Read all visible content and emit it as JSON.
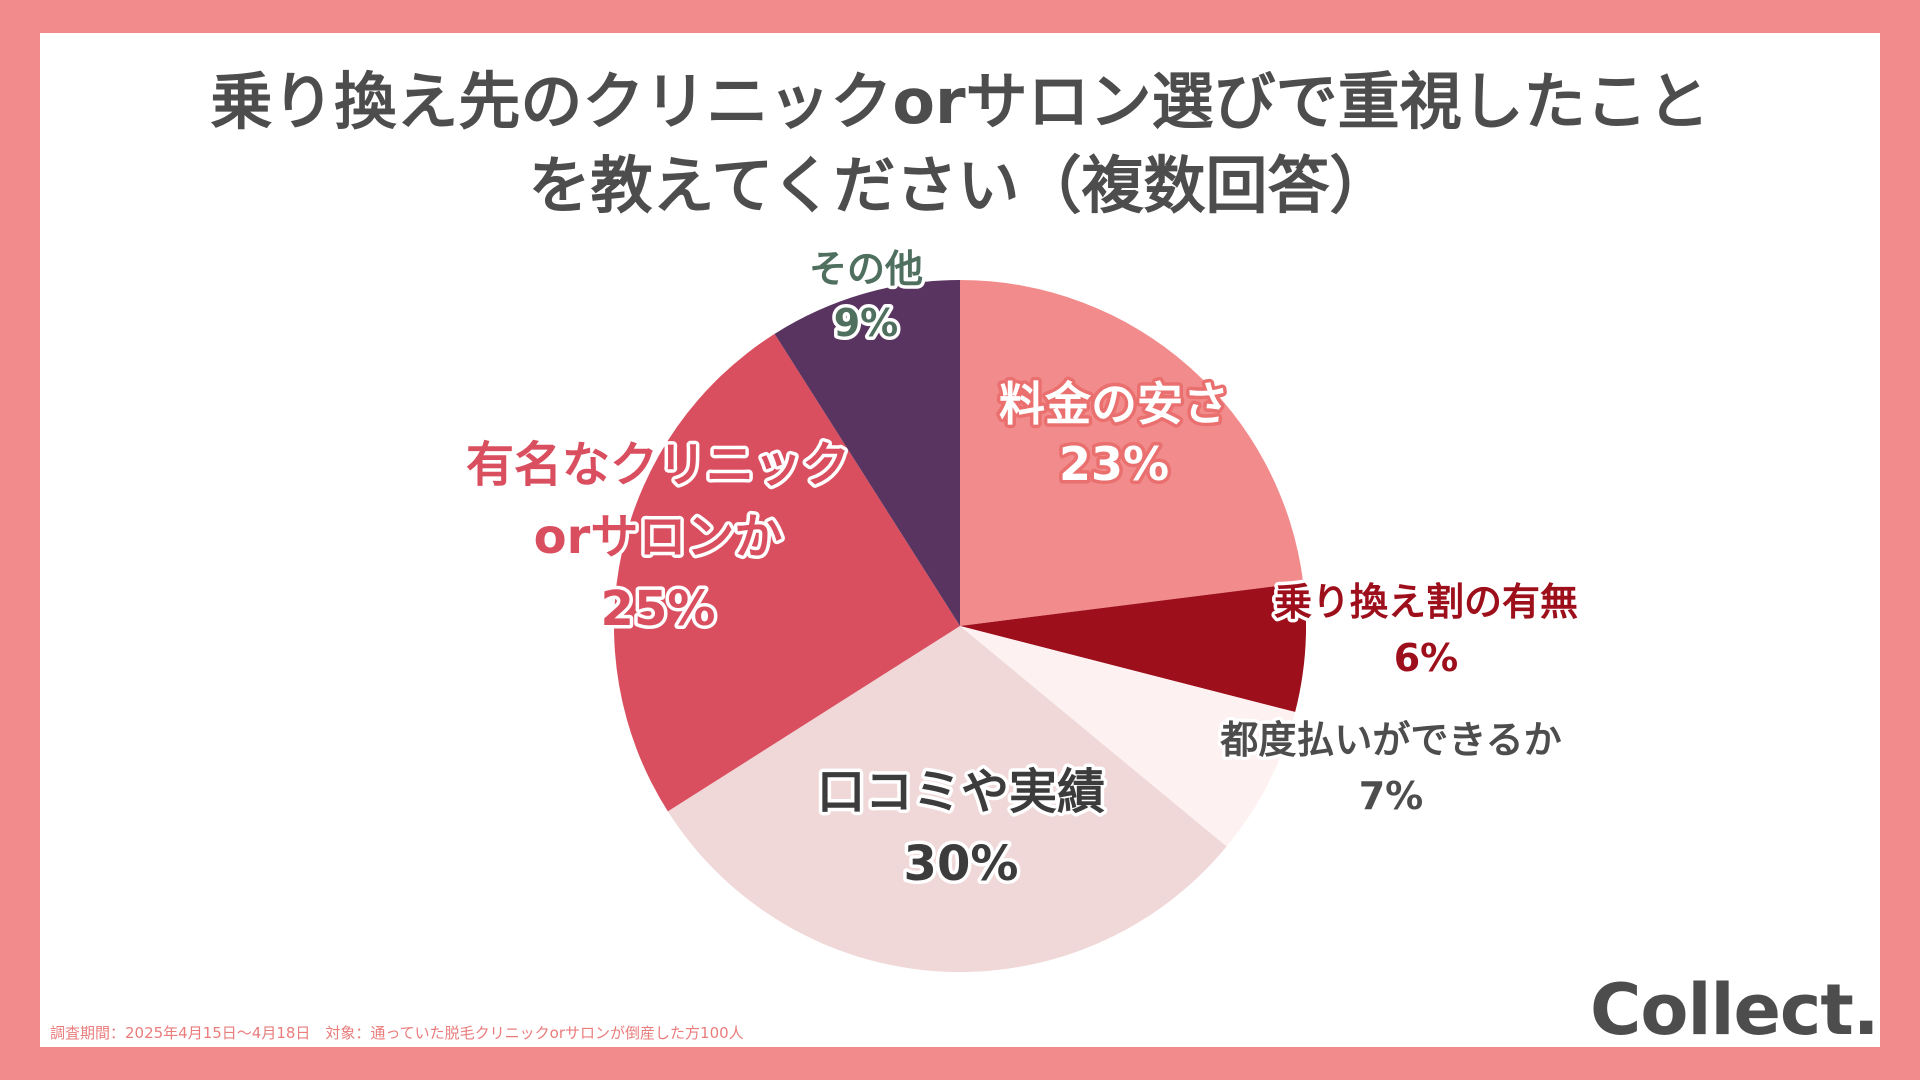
{
  "chart_data": {
    "type": "pie",
    "title_lines": [
      "乗り換え先のクリニックorサロン選びで重視したこと",
      "を教えてください（複数回答）"
    ],
    "start": "12 o'clock",
    "direction": "clockwise",
    "slices": [
      {
        "label_lines": [
          "料金の安さ"
        ],
        "value_label": "23%",
        "value": 23,
        "color": "#f28b8b",
        "label_color": "#ffffff",
        "outline_color": "#ea6f6f"
      },
      {
        "label_lines": [
          "乗り換え割の有無"
        ],
        "value_label": "6%",
        "value": 6,
        "color": "#9e0f1c",
        "label_color": "#9e0f1c",
        "outline_color": "#ffffff"
      },
      {
        "label_lines": [
          "都度払いができるか"
        ],
        "value_label": "7%",
        "value": 7,
        "color": "#fdf1f1",
        "label_color": "#4d4d4d",
        "outline_color": "#ffffff"
      },
      {
        "label_lines": [
          "口コミや実績"
        ],
        "value_label": "30%",
        "value": 30,
        "color": "#f0d8d8",
        "label_color": "#3c3c3c",
        "outline_color": "#ffffff"
      },
      {
        "label_lines": [
          "有名なクリニック",
          "orサロンか"
        ],
        "value_label": "25%",
        "value": 25,
        "color": "#d94f5f",
        "label_color": "#d94f5f",
        "outline_color": "#ffffff"
      },
      {
        "label_lines": [
          "その他"
        ],
        "value_label": "9%",
        "value": 9,
        "color": "#5a3460",
        "label_color": "#4f6f5f",
        "outline_color": "#ffffff"
      }
    ]
  },
  "footnote": "調査期間：2025年4月15日～4月18日　対象：通っていた脱毛クリニックorサロンが倒産した方100人",
  "brand": "Collect."
}
